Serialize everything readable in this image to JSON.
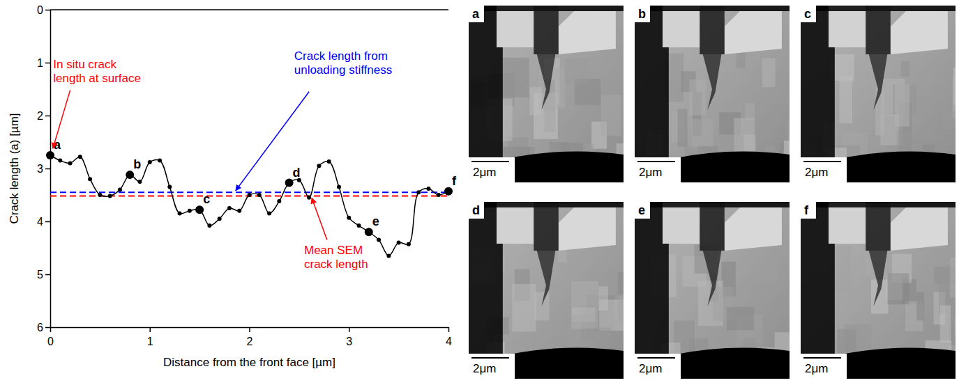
{
  "chart_data": {
    "type": "line",
    "x_label": "Distance from the front face [µm]",
    "y_label": "Crack length (a) [µm]",
    "x": [
      0,
      0.1,
      0.2,
      0.3,
      0.4,
      0.5,
      0.6,
      0.7,
      0.8,
      0.9,
      1.0,
      1.1,
      1.2,
      1.3,
      1.4,
      1.5,
      1.6,
      1.7,
      1.8,
      1.9,
      2.0,
      2.1,
      2.2,
      2.3,
      2.4,
      2.5,
      2.6,
      2.7,
      2.8,
      2.9,
      3.0,
      3.1,
      3.2,
      3.3,
      3.4,
      3.5,
      3.6,
      3.7,
      3.8,
      3.9,
      4.0
    ],
    "series": [
      {
        "name": "SEM crack length",
        "color": "#000000",
        "marker": "circle",
        "line_style": "solid",
        "values": [
          2.75,
          2.85,
          2.9,
          2.78,
          3.2,
          3.5,
          3.52,
          3.4,
          3.12,
          3.25,
          2.88,
          2.85,
          3.35,
          3.85,
          3.8,
          3.78,
          4.08,
          3.95,
          3.75,
          3.8,
          3.5,
          3.5,
          3.85,
          3.62,
          3.27,
          3.22,
          3.55,
          2.95,
          2.87,
          3.35,
          3.93,
          4.08,
          4.2,
          4.35,
          4.65,
          4.4,
          4.43,
          3.45,
          3.38,
          3.5,
          3.43
        ],
        "point_labels": [
          "a",
          null,
          null,
          null,
          null,
          null,
          null,
          null,
          "b",
          null,
          null,
          null,
          null,
          null,
          null,
          "c",
          null,
          null,
          null,
          null,
          null,
          null,
          null,
          null,
          "d",
          null,
          null,
          null,
          null,
          null,
          null,
          null,
          "e",
          null,
          null,
          null,
          null,
          null,
          null,
          null,
          "f"
        ]
      }
    ],
    "reference_lines": [
      {
        "value": 3.45,
        "color": "#0000ff",
        "line_style": "dashed",
        "label_lines": [
          "Crack length from",
          "unloading stiffness"
        ]
      },
      {
        "value": 3.52,
        "color": "#ff0000",
        "line_style": "dashed",
        "label_lines": [
          "Mean SEM",
          "crack length"
        ]
      }
    ],
    "annotations": [
      {
        "text_lines": [
          "In situ crack",
          "length at surface"
        ],
        "color": "#ff0000"
      }
    ],
    "xlim": [
      0,
      4
    ],
    "xticks": [
      0,
      1,
      2,
      3,
      4
    ],
    "ylim": [
      0,
      6
    ],
    "yticks": [
      0,
      1,
      2,
      3,
      4,
      5,
      6
    ],
    "grid": false
  },
  "micrographs": [
    {
      "label": "a",
      "scale_bar": "2μm"
    },
    {
      "label": "b",
      "scale_bar": "2μm"
    },
    {
      "label": "c",
      "scale_bar": "2μm"
    },
    {
      "label": "d",
      "scale_bar": "2μm"
    },
    {
      "label": "e",
      "scale_bar": "2μm"
    },
    {
      "label": "f",
      "scale_bar": "2μm"
    }
  ]
}
